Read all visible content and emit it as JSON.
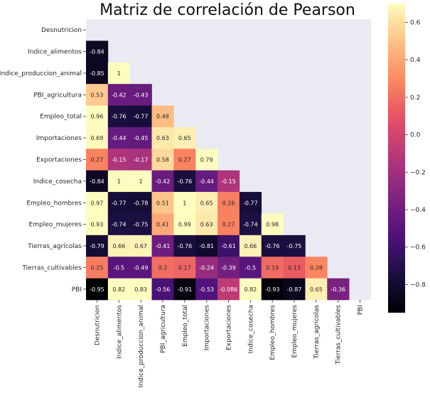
{
  "chart_data": {
    "type": "heatmap",
    "title": "Matriz de correlación de Pearson",
    "xlabel": "",
    "ylabel": "",
    "mask": "upper-triangle-including-diagonal",
    "grid": false,
    "legend": "right",
    "colormap": "magma",
    "background_color": "#eaeaf2",
    "vmin": -0.95,
    "vmax": 0.7,
    "colorbar_ticks": [
      "0.6",
      "0.4",
      "0.2",
      "0.0",
      "−0.2",
      "−0.4",
      "−0.6",
      "−0.8"
    ],
    "colorbar_tick_values": [
      0.6,
      0.4,
      0.2,
      0.0,
      -0.2,
      -0.4,
      -0.6,
      -0.8
    ],
    "rows": [
      "Desnutricion",
      "Indice_alimentos",
      "Indice_produccion_animal",
      "PBI_agricultura",
      "Empleo_total",
      "Importaciones",
      "Exportaciones",
      "Indice_cosecha",
      "Empleo_hombres",
      "Empleo_mujeres",
      "Tierras_agrícolas",
      "Tierras_cultivables",
      "PBI"
    ],
    "columns": [
      "Desnutricion",
      "Indice_alimentos",
      "Indice_produccion_animal",
      "PBI_agricultura",
      "Empleo_total",
      "Importaciones",
      "Exportaciones",
      "Indice_cosecha",
      "Empleo_hombres",
      "Empleo_mujeres",
      "Tierras_agrícolas",
      "Tierras_cultivables",
      "PBI"
    ],
    "values": [
      [],
      [
        -0.84
      ],
      [
        -0.85,
        1
      ],
      [
        0.53,
        -0.42,
        -0.43
      ],
      [
        0.96,
        -0.76,
        -0.77,
        0.48
      ],
      [
        0.69,
        -0.44,
        -0.45,
        0.63,
        0.65
      ],
      [
        0.27,
        -0.15,
        -0.17,
        0.58,
        0.27,
        0.79
      ],
      [
        -0.84,
        1,
        1,
        -0.42,
        -0.76,
        -0.44,
        -0.15
      ],
      [
        0.97,
        -0.77,
        -0.78,
        0.51,
        1,
        0.65,
        0.26,
        -0.77
      ],
      [
        0.93,
        -0.74,
        -0.75,
        0.41,
        0.99,
        0.63,
        0.27,
        -0.74,
        0.98
      ],
      [
        -0.79,
        0.66,
        0.67,
        -0.41,
        -0.76,
        -0.81,
        -0.61,
        0.66,
        -0.76,
        -0.75
      ],
      [
        0.25,
        -0.5,
        -0.49,
        0.2,
        0.17,
        -0.24,
        -0.39,
        -0.5,
        0.19,
        0.13,
        0.28
      ],
      [
        -0.95,
        0.82,
        0.83,
        -0.56,
        -0.91,
        -0.53,
        -0.086,
        0.82,
        -0.93,
        -0.87,
        0.65,
        -0.36
      ]
    ],
    "labels": [
      [],
      [
        "-0.84"
      ],
      [
        "-0.85",
        "1"
      ],
      [
        "0.53",
        "-0.42",
        "-0.43"
      ],
      [
        "0.96",
        "-0.76",
        "-0.77",
        "0.48"
      ],
      [
        "0.69",
        "-0.44",
        "-0.45",
        "0.63",
        "0.65"
      ],
      [
        "0.27",
        "-0.15",
        "-0.17",
        "0.58",
        "0.27",
        "0.79"
      ],
      [
        "-0.84",
        "1",
        "1",
        "-0.42",
        "-0.76",
        "-0.44",
        "-0.15"
      ],
      [
        "0.97",
        "-0.77",
        "-0.78",
        "0.51",
        "1",
        "0.65",
        "0.26",
        "-0.77"
      ],
      [
        "0.93",
        "-0.74",
        "-0.75",
        "0.41",
        "0.99",
        "0.63",
        "0.27",
        "-0.74",
        "0.98"
      ],
      [
        "-0.79",
        "0.66",
        "0.67",
        "-0.41",
        "-0.76",
        "-0.81",
        "-0.61",
        "0.66",
        "-0.76",
        "-0.75"
      ],
      [
        "0.25",
        "-0.5",
        "-0.49",
        "0.2",
        "0.17",
        "-0.24",
        "-0.39",
        "-0.5",
        "0.19",
        "0.13",
        "0.28"
      ],
      [
        "-0.95",
        "0.82",
        "0.83",
        "-0.56",
        "-0.91",
        "-0.53",
        "-0.086",
        "0.82",
        "-0.93",
        "-0.87",
        "0.65",
        "-0.36"
      ]
    ]
  }
}
